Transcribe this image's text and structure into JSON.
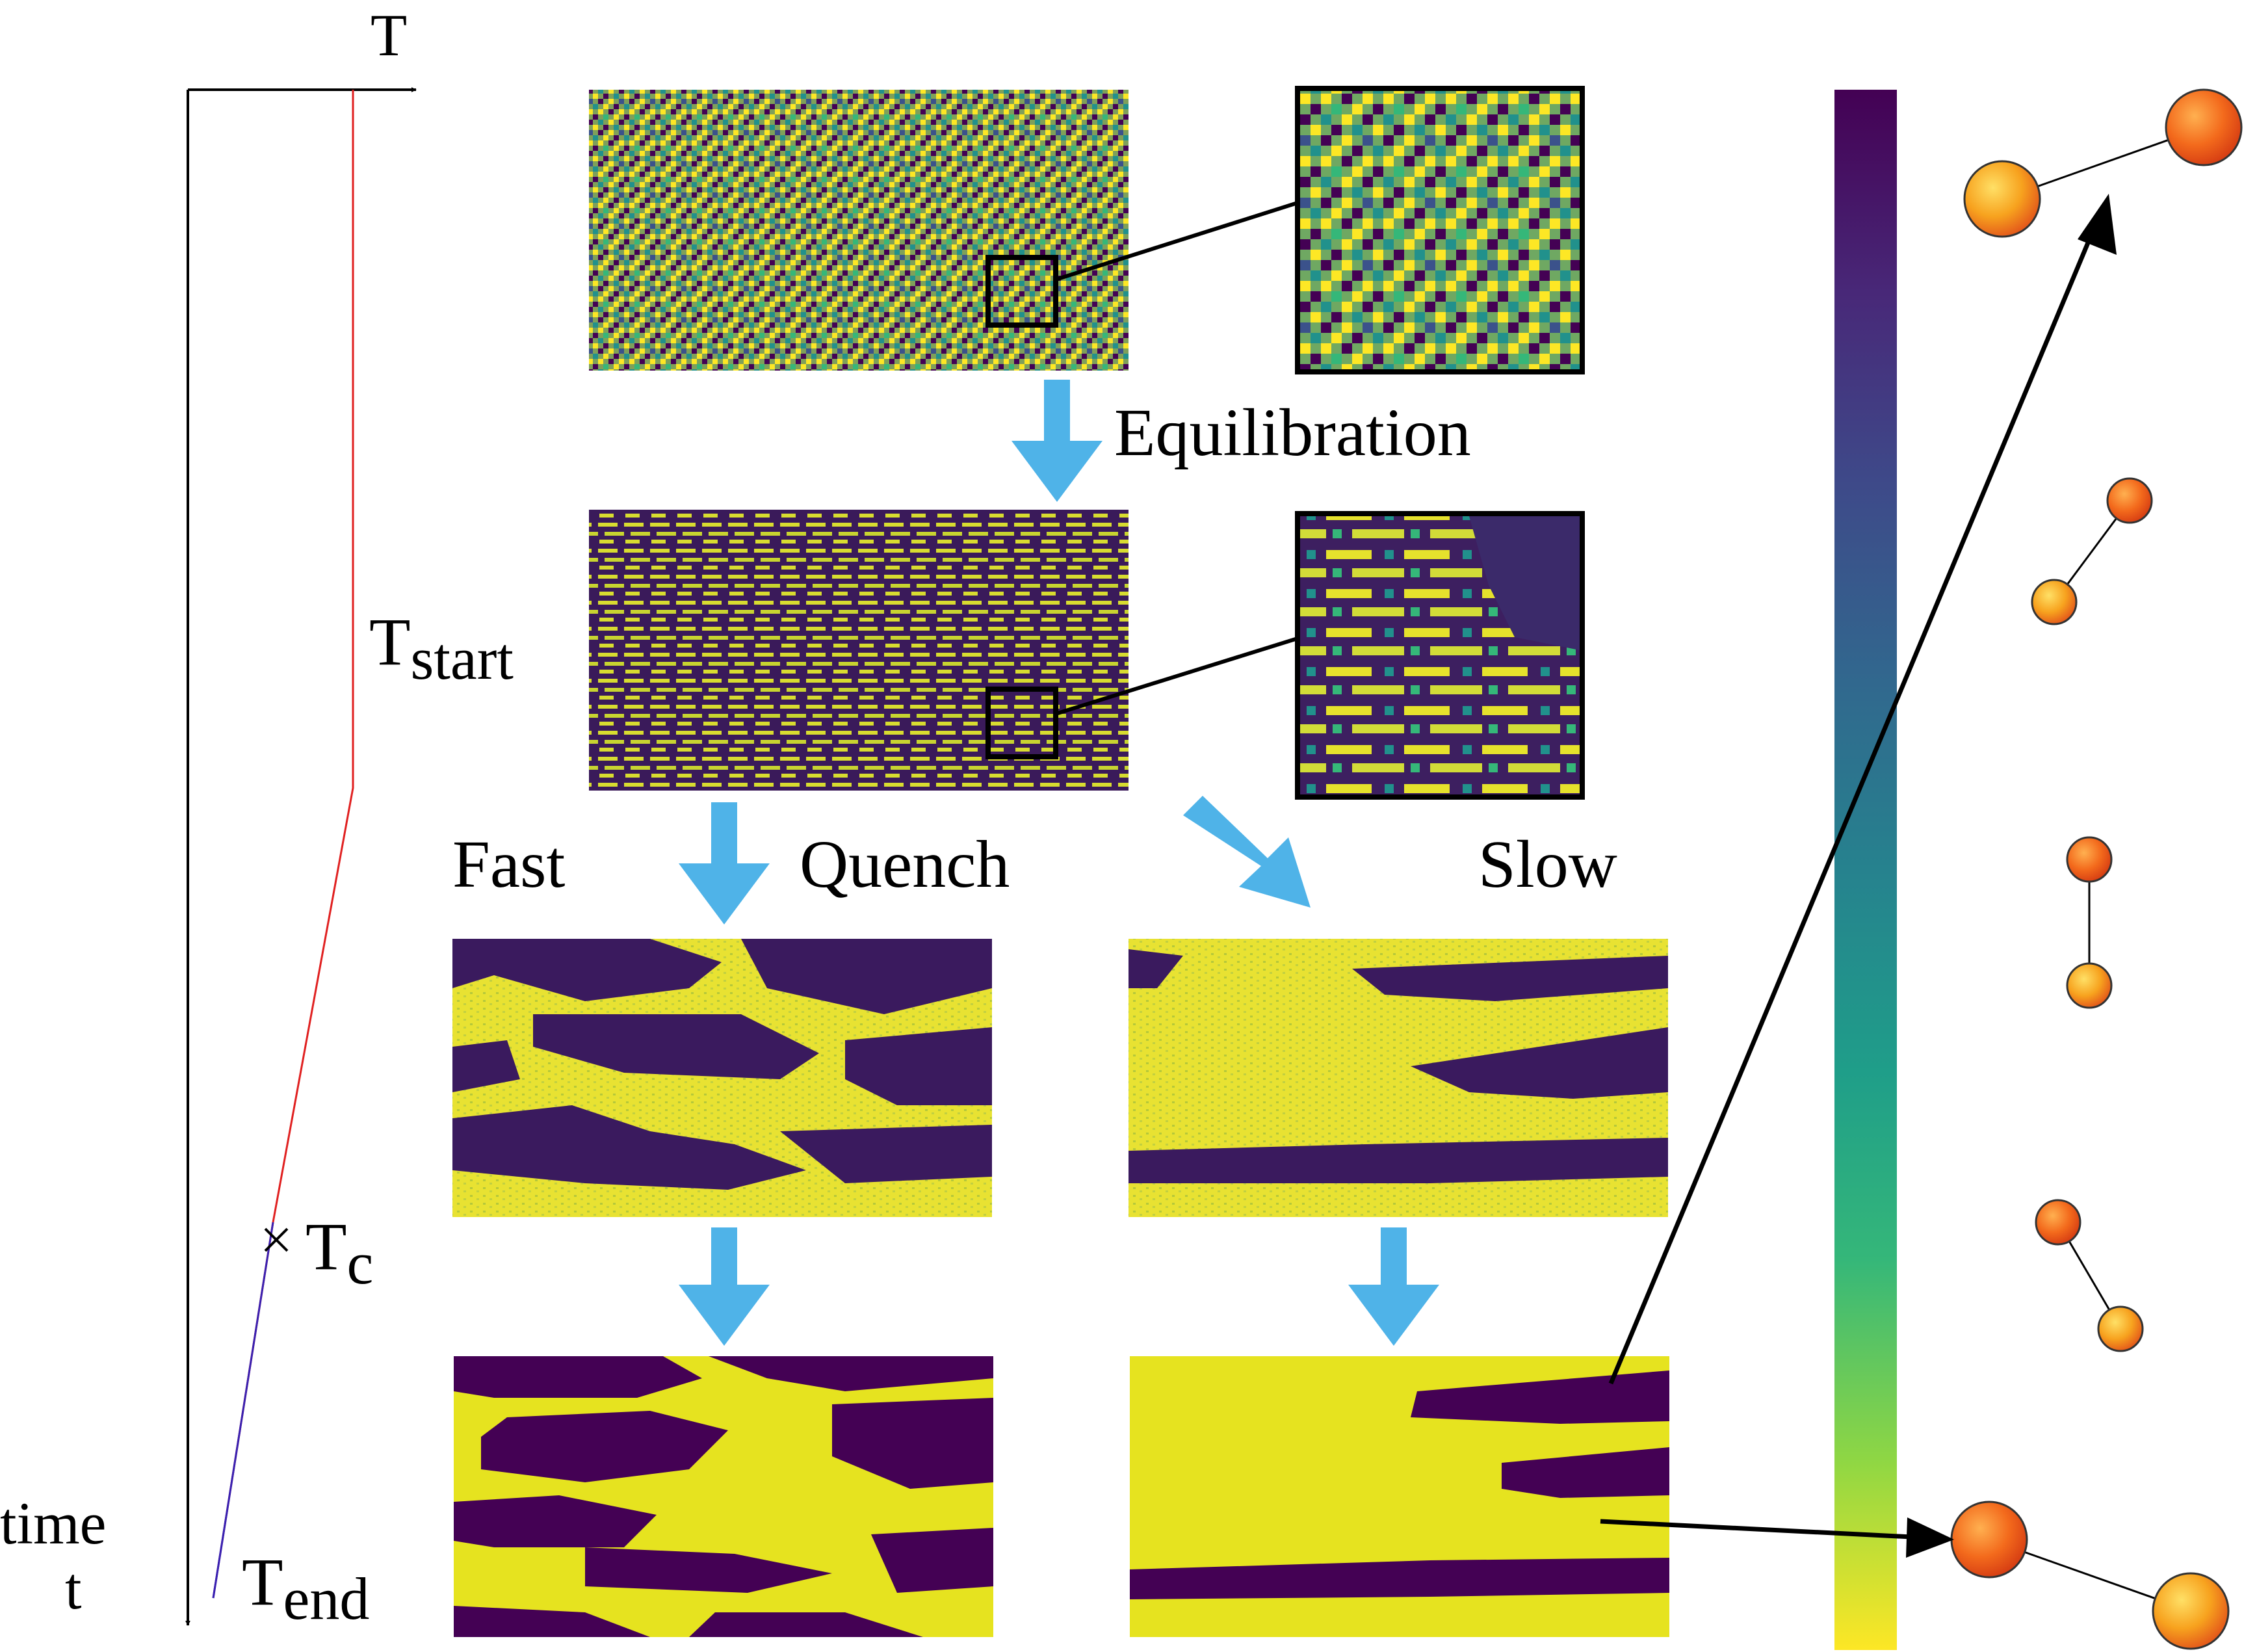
{
  "axis": {
    "temperature_label": "T",
    "time_label_line1": "time",
    "time_label_line2": "t"
  },
  "levels": {
    "t_start_main": "T",
    "t_start_sub": "start",
    "t_c_main": "T",
    "t_c_sub": "c",
    "t_end_main": "T",
    "t_end_sub": "end"
  },
  "steps": {
    "equilibration": "Equilibration",
    "fast": "Fast",
    "quench": "Quench",
    "slow": "Slow"
  },
  "colors": {
    "viridis_dark": "#440154",
    "viridis_yellow": "#fde725",
    "arrow_blue": "#4fb3e8",
    "temperature_hot": "#e02020",
    "temperature_cold": "#2020c0",
    "sphere_orange": "#f5a020"
  },
  "spin_orientations": [
    "spin-dimer-horizontal-up",
    "spin-dimer-diagonal",
    "spin-dimer-vertical",
    "spin-dimer-diagonal-down",
    "spin-dimer-horizontal-down"
  ]
}
